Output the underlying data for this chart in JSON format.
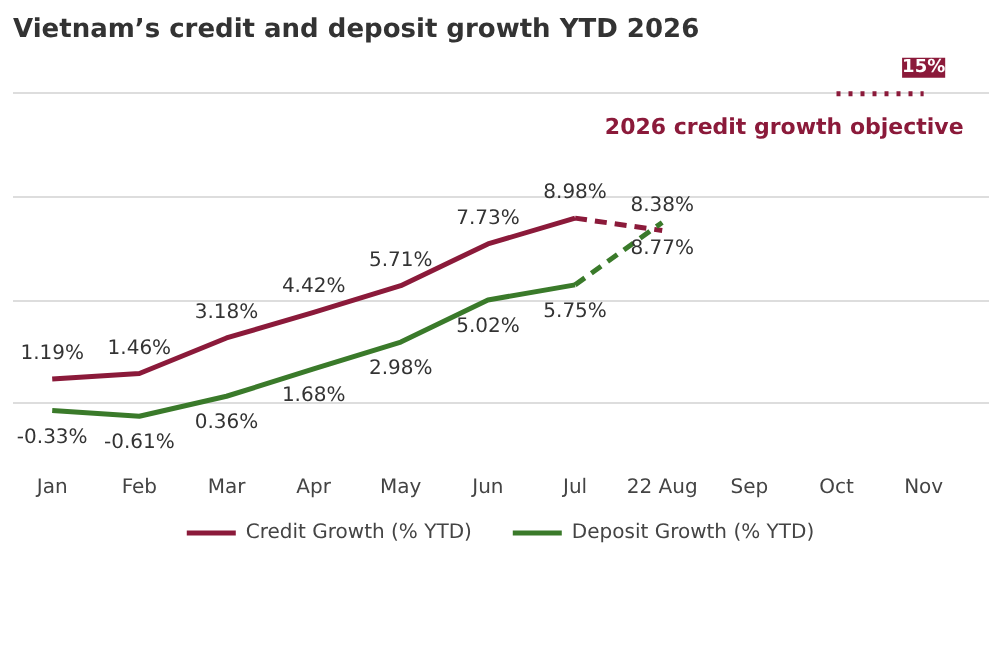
{
  "chart_data": {
    "type": "line",
    "title": "Vietnam’s credit and deposit growth YTD 2026",
    "categories": [
      "Jan",
      "Feb",
      "Mar",
      "Apr",
      "May",
      "Jun",
      "Jul",
      "22 Aug",
      "Sep",
      "Oct",
      "Nov"
    ],
    "series": [
      {
        "name": "Credit Growth (% YTD)",
        "color": "#8b1a3a",
        "values": [
          1.19,
          1.46,
          3.18,
          4.42,
          5.71,
          7.73,
          8.98,
          null,
          null,
          null,
          null
        ],
        "value_labels": [
          "1.19%",
          "1.46%",
          "3.18%",
          "4.42%",
          "5.71%",
          "7.73%",
          "8.98%",
          null,
          null,
          null,
          null
        ]
      },
      {
        "name": "Deposit Growth (% YTD)",
        "color": "#3a7a2a",
        "values": [
          -0.33,
          -0.61,
          0.36,
          1.68,
          2.98,
          5.02,
          5.75,
          null,
          null,
          null,
          null
        ],
        "value_labels": [
          "-0.33%",
          "-0.61%",
          "0.36%",
          "1.68%",
          "2.98%",
          "5.02%",
          "5.75%",
          null,
          null,
          null,
          null
        ]
      },
      {
        "color": "#8b1a3a",
        "line_style": "dashed",
        "values": [
          null,
          null,
          null,
          null,
          null,
          null,
          8.98,
          8.38,
          null,
          null,
          null
        ],
        "value_labels": [
          null,
          null,
          null,
          null,
          null,
          null,
          null,
          "8.38%",
          null,
          null,
          null
        ]
      },
      {
        "color": "#3a7a2a",
        "line_style": "dashed",
        "values": [
          null,
          null,
          null,
          null,
          null,
          null,
          5.75,
          8.77,
          null,
          null,
          null
        ],
        "value_labels": [
          null,
          null,
          null,
          null,
          null,
          null,
          null,
          "8.77%",
          null,
          null,
          null
        ]
      },
      {
        "color": "#8b1a3a",
        "line_style": "dotted",
        "values": [
          null,
          null,
          null,
          null,
          null,
          null,
          null,
          null,
          null,
          15,
          15
        ],
        "value_labels": [
          null,
          null,
          null,
          null,
          null,
          null,
          null,
          null,
          null,
          null,
          "15%"
        ]
      }
    ],
    "annotations": [
      "2026 credit growth objective"
    ],
    "tick_labels": "x",
    "grid": "y",
    "legend": "bottom"
  }
}
